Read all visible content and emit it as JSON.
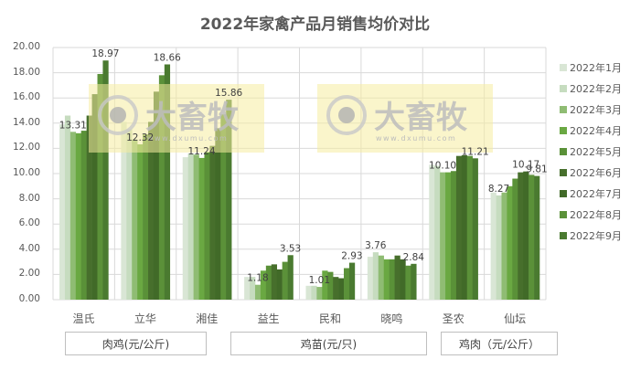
{
  "title": "2022年家禽产品月销售均价对比",
  "chart_data": {
    "type": "bar",
    "title": "2022年家禽产品月销售均价对比",
    "xlabel": "",
    "ylabel": "",
    "ylim": [
      0,
      20
    ],
    "yticks": [
      "0.00",
      "2.00",
      "4.00",
      "6.00",
      "8.00",
      "10.00",
      "12.00",
      "14.00",
      "16.00",
      "18.00",
      "20.00"
    ],
    "grid": true,
    "legend_position": "right",
    "categories": [
      "温氏",
      "立华",
      "湘佳",
      "益生",
      "民和",
      "晓鸣",
      "圣农",
      "仙坛"
    ],
    "category_groups": [
      {
        "label": "肉鸡(元/公斤)",
        "categories": [
          "温氏",
          "立华",
          "湘佳"
        ]
      },
      {
        "label": "鸡苗(元/只)",
        "categories": [
          "益生",
          "民和",
          "晓鸣"
        ]
      },
      {
        "label": "鸡肉（元/公斤）",
        "categories": [
          "圣农",
          "仙坛"
        ]
      }
    ],
    "series": [
      {
        "name": "2022年1月",
        "color": "#d9e6d5",
        "values": [
          13.9,
          14.1,
          11.3,
          1.8,
          1.1,
          3.4,
          10.7,
          8.5
        ]
      },
      {
        "name": "2022年2月",
        "color": "#c6dcbf",
        "values": [
          14.6,
          13.5,
          11.6,
          1.8,
          1.1,
          3.76,
          10.6,
          8.27
        ]
      },
      {
        "name": "2022年3月",
        "color": "#8fbc73",
        "values": [
          13.31,
          12.7,
          11.5,
          1.18,
          1.01,
          3.5,
          10.1,
          8.5
        ]
      },
      {
        "name": "2022年4月",
        "color": "#6aa842",
        "values": [
          13.2,
          12.32,
          11.24,
          2.3,
          2.3,
          3.2,
          10.1,
          9.0
        ]
      },
      {
        "name": "2022年5月",
        "color": "#5a9138",
        "values": [
          13.4,
          13.1,
          11.7,
          2.7,
          2.2,
          3.2,
          10.2,
          9.6
        ]
      },
      {
        "name": "2022年6月",
        "color": "#476f2c",
        "values": [
          14.6,
          14.1,
          12.2,
          2.8,
          1.8,
          3.5,
          11.4,
          10.1
        ]
      },
      {
        "name": "2022年7月",
        "color": "#416a28",
        "values": [
          16.3,
          16.5,
          13.6,
          2.4,
          1.7,
          3.2,
          11.45,
          10.17
        ]
      },
      {
        "name": "2022年8月",
        "color": "#5b9139",
        "values": [
          17.9,
          17.8,
          14.7,
          3.0,
          2.5,
          2.7,
          11.4,
          9.9
        ]
      },
      {
        "name": "2022年9月",
        "color": "#4a7a30",
        "values": [
          18.97,
          18.66,
          15.86,
          3.53,
          2.93,
          2.84,
          11.21,
          9.81
        ]
      }
    ],
    "data_labels": [
      {
        "category": "温氏",
        "series": "2022年3月",
        "text": "13.31"
      },
      {
        "category": "温氏",
        "series": "2022年9月",
        "text": "18.97"
      },
      {
        "category": "立华",
        "series": "2022年4月",
        "text": "12.32"
      },
      {
        "category": "立华",
        "series": "2022年9月",
        "text": "18.66"
      },
      {
        "category": "湘佳",
        "series": "2022年4月",
        "text": "11.24"
      },
      {
        "category": "湘佳",
        "series": "2022年9月",
        "text": "15.86"
      },
      {
        "category": "益生",
        "series": "2022年3月",
        "text": "1.18"
      },
      {
        "category": "益生",
        "series": "2022年9月",
        "text": "3.53"
      },
      {
        "category": "民和",
        "series": "2022年3月",
        "text": "1.01"
      },
      {
        "category": "民和",
        "series": "2022年9月",
        "text": "2.93"
      },
      {
        "category": "晓鸣",
        "series": "2022年2月",
        "text": "3.76"
      },
      {
        "category": "晓鸣",
        "series": "2022年9月",
        "text": "2.84"
      },
      {
        "category": "圣农",
        "series": "2022年3月",
        "text": "10.10"
      },
      {
        "category": "圣农",
        "series": "2022年9月",
        "text": "11.21"
      },
      {
        "category": "仙坛",
        "series": "2022年2月",
        "text": "8.27"
      },
      {
        "category": "仙坛",
        "series": "2022年7月",
        "text": "10.17"
      },
      {
        "category": "仙坛",
        "series": "2022年9月",
        "text": "9.81"
      }
    ]
  },
  "watermark": {
    "text": "大畜牧",
    "url_text": "www.dxumu.com"
  }
}
